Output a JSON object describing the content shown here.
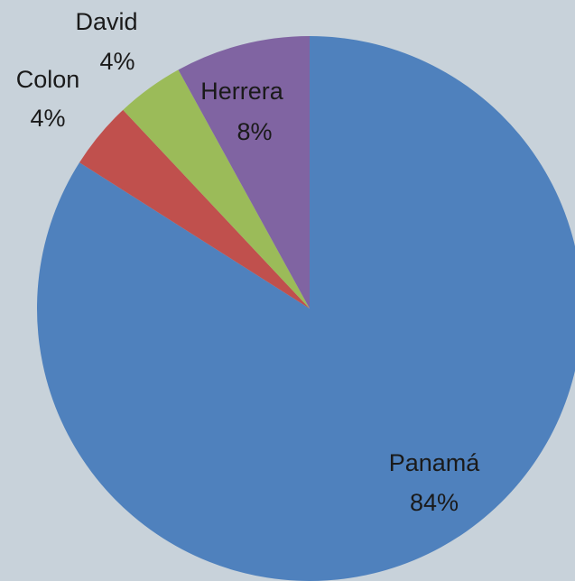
{
  "chart_data": {
    "type": "pie",
    "title": "",
    "legend": "none",
    "slices": [
      {
        "name": "Panamá",
        "value": 84,
        "label": "84%",
        "color": "#4f81bd"
      },
      {
        "name": "Colon",
        "value": 4,
        "label": "4%",
        "color": "#c0504d"
      },
      {
        "name": "David",
        "value": 4,
        "label": "4%",
        "color": "#9bbb59"
      },
      {
        "name": "Herrera",
        "value": 8,
        "label": "8%",
        "color": "#8064a2"
      }
    ]
  }
}
